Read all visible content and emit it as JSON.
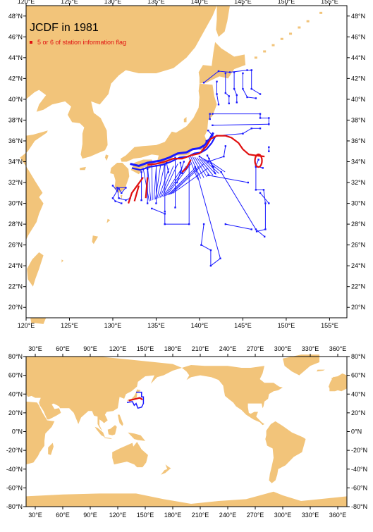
{
  "title": "JCDF in 1981",
  "legend_label": "5 or 6 of station information flag",
  "colors": {
    "land": "#f2c47a",
    "ocean": "#ffffff",
    "track": "#1a1aff",
    "flagged": "#e01010",
    "frame": "#000000"
  },
  "top_map": {
    "lon_range": [
      120,
      157
    ],
    "lat_range": [
      19,
      49
    ],
    "lon_labels": [
      "120°E",
      "125°E",
      "130°E",
      "135°E",
      "140°E",
      "145°E",
      "150°E",
      "155°E"
    ],
    "lat_labels": [
      "20°N",
      "22°N",
      "24°N",
      "26°N",
      "28°N",
      "30°N",
      "32°N",
      "34°N",
      "36°N",
      "38°N",
      "40°N",
      "42°N",
      "44°N",
      "46°N",
      "48°N"
    ]
  },
  "bottom_map": {
    "lon_range": [
      20,
      370
    ],
    "lat_range": [
      -80,
      80
    ],
    "lon_labels": [
      "30°E",
      "60°E",
      "90°E",
      "120°E",
      "150°E",
      "180°E",
      "210°E",
      "240°E",
      "270°E",
      "300°E",
      "330°E",
      "360°E"
    ],
    "lat_labels": [
      "80°N",
      "60°N",
      "40°N",
      "20°N",
      "0°N",
      "-20°N",
      "-40°N",
      "-60°N",
      "-80°N"
    ]
  }
}
